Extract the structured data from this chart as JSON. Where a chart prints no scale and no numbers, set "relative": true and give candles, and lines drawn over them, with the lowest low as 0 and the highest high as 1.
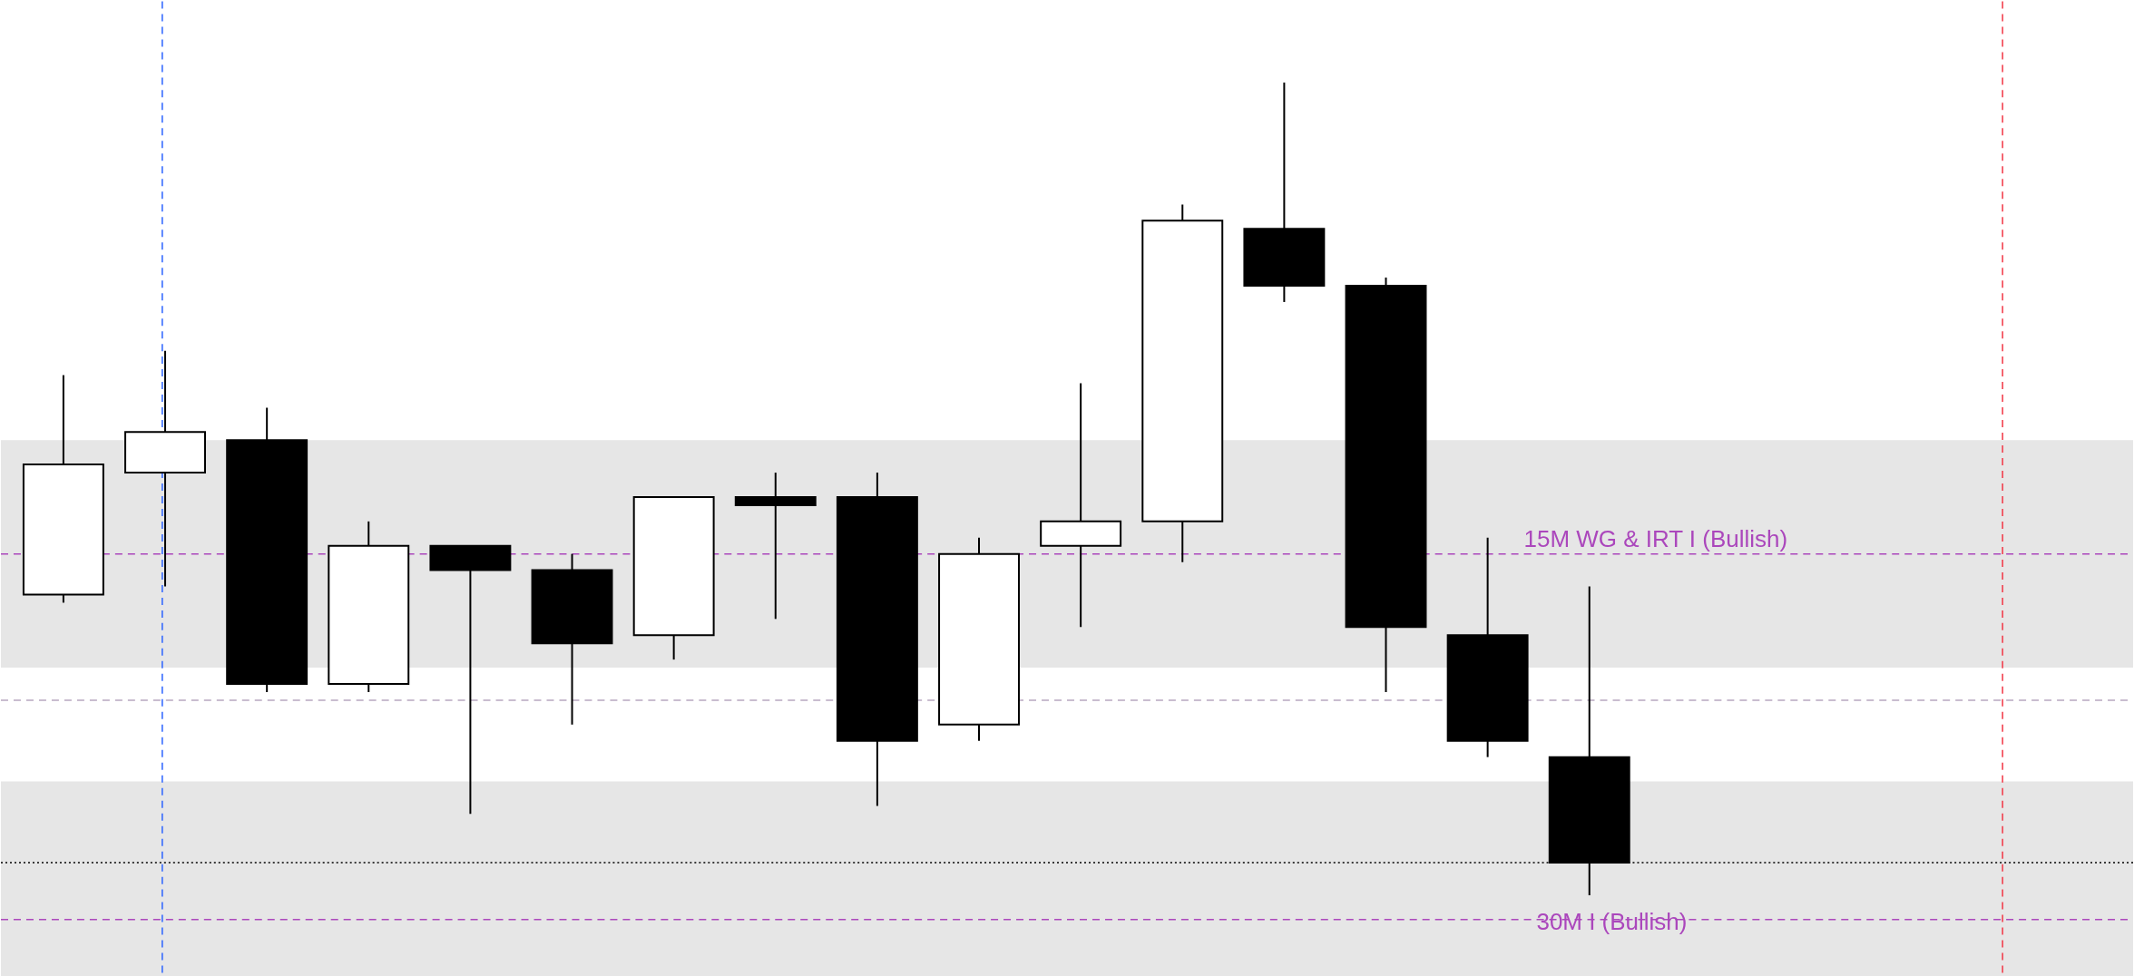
{
  "chart_data": {
    "type": "candlestick",
    "relative": true,
    "categories": [
      null,
      null,
      null,
      null,
      null,
      null,
      null,
      null,
      null,
      null,
      null,
      null,
      null,
      null,
      null,
      null
    ],
    "ohlc": [
      [
        0.37,
        0.64,
        0.36,
        0.53
      ],
      [
        0.52,
        0.67,
        0.38,
        0.57
      ],
      [
        0.56,
        0.6,
        0.25,
        0.26
      ],
      [
        0.26,
        0.46,
        0.25,
        0.43
      ],
      [
        0.43,
        0.43,
        0.1,
        0.4
      ],
      [
        0.4,
        0.42,
        0.21,
        0.31
      ],
      [
        0.32,
        0.49,
        0.29,
        0.49
      ],
      [
        0.49,
        0.52,
        0.34,
        0.48
      ],
      [
        0.49,
        0.52,
        0.11,
        0.19
      ],
      [
        0.21,
        0.44,
        0.19,
        0.42
      ],
      [
        0.43,
        0.63,
        0.33,
        0.46
      ],
      [
        0.46,
        0.85,
        0.41,
        0.83
      ],
      [
        0.82,
        1.0,
        0.73,
        0.75
      ],
      [
        0.75,
        0.76,
        0.25,
        0.33
      ],
      [
        0.32,
        0.44,
        0.17,
        0.19
      ],
      [
        0.17,
        0.38,
        0.0,
        0.04
      ]
    ],
    "bands": [
      {
        "axis": "y",
        "from": 0.28,
        "to": 0.56,
        "color": "#e6e6e6"
      },
      {
        "axis": "y",
        "from": -0.1,
        "to": 0.14,
        "color": "#e6e6e6"
      }
    ],
    "ref_lines": [
      {
        "axis": "y",
        "value": 0.42,
        "label": "15M WG & IRT I (Bullish)",
        "color": "#ab47bc",
        "line_style": "dashed"
      },
      {
        "axis": "y",
        "value": -0.03,
        "label": "30M I (Bullish)",
        "color": "#ab47bc",
        "line_style": "dashed"
      },
      {
        "axis": "y",
        "value": 0.24,
        "color": "#b8a8c0",
        "line_style": "dashed"
      },
      {
        "axis": "y",
        "value": 0.04,
        "color": "#000000",
        "line_style": "dotted"
      }
    ]
  }
}
